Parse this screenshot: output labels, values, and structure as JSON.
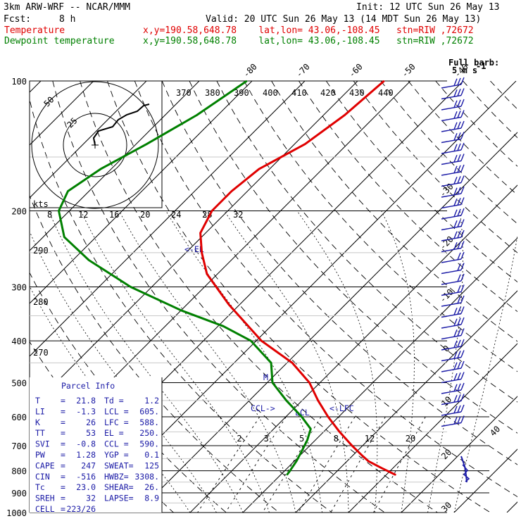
{
  "header": {
    "model": "3km ARW-WRF -- NCAR/MMM",
    "init": "Init: 12 UTC Sun 26 May 13",
    "fcst_label": "Fcst:",
    "fcst_value": "8 h",
    "valid": "Valid: 20 UTC Sun 26 May 13 (14 MDT Sun 26 May 13)",
    "temp_label": "Temperature",
    "dew_label": "Dewpoint temperature",
    "temp_loc": "x,y=190.58,648.78    lat,lon= 43.06,-108.45   stn=RIW ,72672",
    "dew_loc": "x,y=190.58,648.78    lat,lon= 43.06,-108.45   stn=RIW ,72672"
  },
  "colors": {
    "temperature": "#e00000",
    "dewpoint": "#008000",
    "parcel_info": "#1a1aa6",
    "barbs": "#1a1aa6"
  },
  "chart_data": {
    "type": "line",
    "pressure_levels": [
      "100",
      "200",
      "300",
      "400",
      "500",
      "600",
      "700",
      "800",
      "900",
      "1000"
    ],
    "temperature_ticks": [
      "-80",
      "-70",
      "-60",
      "-50",
      "-40",
      "-30",
      "-20",
      "-10",
      "0",
      "10",
      "20",
      "30",
      "40"
    ],
    "theta_labels": [
      "370",
      "380",
      "390",
      "400",
      "410",
      "420",
      "430",
      "440"
    ],
    "ml_labels": [
      "2",
      "3",
      "5",
      "8",
      "12",
      "20"
    ],
    "left_labels": [
      "290",
      "280",
      "270"
    ],
    "hodo_kts_label": "kts",
    "hodo_speed_ticks": [
      "8",
      "12",
      "16",
      "20",
      "24",
      "28",
      "32"
    ],
    "hodo_ring_labels": [
      "50",
      "25"
    ],
    "level_marks": {
      "el": "<-EL",
      "m": "M",
      "ccl": "CCL->",
      "lcl": "LCL",
      "lfc": "<-LFC"
    },
    "barb_label": [
      "Full barb:",
      "5 m s",
      "-1"
    ],
    "series": [
      {
        "name": "Temperature",
        "points": [
          [
            100,
            -55
          ],
          [
            120,
            -56
          ],
          [
            140,
            -58
          ],
          [
            160,
            -62
          ],
          [
            180,
            -63
          ],
          [
            200,
            -63
          ],
          [
            225,
            -61
          ],
          [
            250,
            -57
          ],
          [
            280,
            -52
          ],
          [
            330,
            -42
          ],
          [
            400,
            -29
          ],
          [
            450,
            -19
          ],
          [
            500,
            -12
          ],
          [
            550,
            -7
          ],
          [
            600,
            -2
          ],
          [
            650,
            3
          ],
          [
            700,
            8
          ],
          [
            740,
            12
          ],
          [
            760,
            14
          ],
          [
            790,
            18
          ],
          [
            818,
            21.8
          ]
        ]
      },
      {
        "name": "Dewpoint temperature",
        "points": [
          [
            100,
            -81
          ],
          [
            120,
            -84
          ],
          [
            140,
            -88
          ],
          [
            160,
            -92
          ],
          [
            180,
            -94
          ],
          [
            200,
            -92
          ],
          [
            230,
            -86
          ],
          [
            260,
            -77
          ],
          [
            300,
            -64
          ],
          [
            340,
            -50
          ],
          [
            370,
            -39
          ],
          [
            400,
            -31
          ],
          [
            450,
            -23
          ],
          [
            500,
            -19
          ],
          [
            550,
            -13
          ],
          [
            600,
            -7
          ],
          [
            640,
            -3
          ],
          [
            680,
            -1.5
          ],
          [
            720,
            -0.5
          ],
          [
            760,
            0.4
          ],
          [
            800,
            1
          ],
          [
            818,
            1.2
          ]
        ]
      }
    ]
  },
  "parcel": {
    "title": "Parcel Info",
    "rows": [
      [
        "T",
        "=",
        "21.8",
        "Td =",
        "1.2"
      ],
      [
        "LI",
        "=",
        "-1.3",
        "LCL =",
        "605."
      ],
      [
        "K",
        "=",
        "26",
        "LFC =",
        "588."
      ],
      [
        "TT",
        "=",
        "53",
        "EL =",
        "250."
      ],
      [
        "SVI",
        "=",
        "-0.8",
        "CCL =",
        "590."
      ],
      [
        "PW",
        "=",
        "1.28",
        "YGP =",
        "0.1"
      ],
      [
        "CAPE",
        "=",
        "247",
        "SWEAT=",
        "125"
      ],
      [
        "CIN",
        "=",
        "-516",
        "HWBZ=",
        "3308."
      ],
      [
        "Tc",
        "=",
        "23.0",
        "SHEAR=",
        "26."
      ],
      [
        "SREH",
        "=",
        "32",
        "LAPSE=",
        "8.9"
      ],
      [
        "CELL",
        "=",
        "223/26",
        "",
        ""
      ]
    ]
  }
}
